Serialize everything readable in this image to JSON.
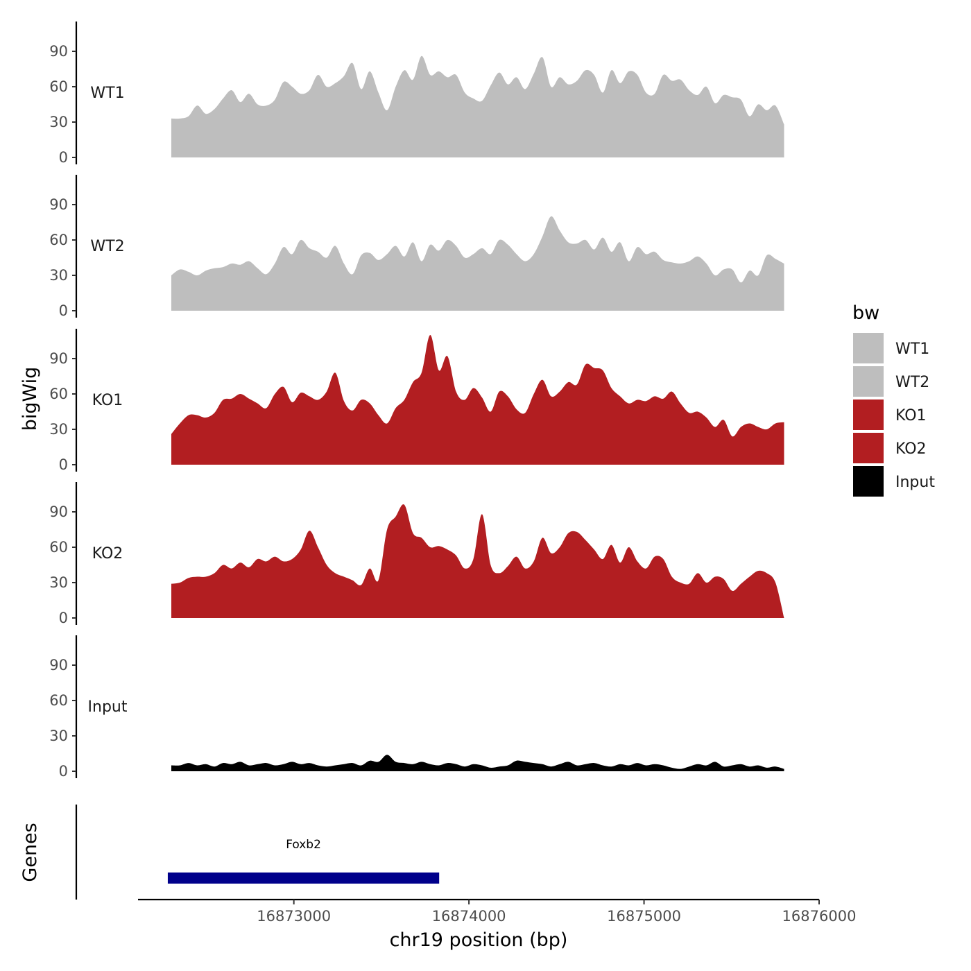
{
  "chart_data": {
    "type": "area",
    "ylabel": "bigWig",
    "xlabel": "chr19 position (bp)",
    "genes_label": "Genes",
    "x_range": [
      16872300,
      16875800
    ],
    "xlim": [
      16872110,
      16876000
    ],
    "x_ticks": [
      16873000,
      16874000,
      16875000,
      16876000
    ],
    "x_tick_labels": [
      "16873000",
      "16874000",
      "16875000",
      "16876000"
    ],
    "ylim": [
      0,
      115
    ],
    "y_ticks": [
      0,
      30,
      60,
      90
    ],
    "y_tick_labels": [
      "0",
      "30",
      "60",
      "90"
    ],
    "legend": {
      "title": "bw",
      "position": "right",
      "entries": [
        {
          "label": "WT1",
          "color": "#bebebe"
        },
        {
          "label": "WT2",
          "color": "#bebebe"
        },
        {
          "label": "KO1",
          "color": "#b21e21"
        },
        {
          "label": "KO2",
          "color": "#b21e21"
        },
        {
          "label": "Input",
          "color": "#000000"
        }
      ]
    },
    "tracks": [
      {
        "name": "WT1",
        "color": "#bebebe",
        "values": [
          33,
          33,
          35,
          44,
          37,
          41,
          50,
          57,
          47,
          54,
          45,
          44,
          49,
          64,
          60,
          54,
          57,
          70,
          60,
          63,
          69,
          80,
          58,
          73,
          55,
          40,
          60,
          74,
          66,
          86,
          70,
          73,
          68,
          70,
          55,
          50,
          48,
          61,
          72,
          62,
          68,
          58,
          71,
          85,
          60,
          68,
          62,
          65,
          74,
          70,
          55,
          74,
          63,
          73,
          70,
          55,
          54,
          70,
          65,
          66,
          57,
          53,
          60,
          46,
          53,
          51,
          49,
          35,
          45,
          40,
          44,
          28
        ]
      },
      {
        "name": "WT2",
        "color": "#bebebe",
        "values": [
          30,
          35,
          33,
          30,
          34,
          36,
          37,
          40,
          39,
          42,
          36,
          31,
          40,
          54,
          48,
          60,
          53,
          50,
          45,
          55,
          40,
          31,
          47,
          49,
          43,
          48,
          55,
          46,
          58,
          42,
          56,
          51,
          60,
          55,
          45,
          48,
          53,
          48,
          60,
          56,
          48,
          42,
          48,
          63,
          80,
          68,
          58,
          57,
          60,
          52,
          62,
          50,
          58,
          42,
          54,
          48,
          50,
          43,
          41,
          40,
          42,
          46,
          40,
          30,
          35,
          35,
          24,
          34,
          30,
          47,
          44,
          40
        ]
      },
      {
        "name": "KO1",
        "color": "#b21e21",
        "values": [
          26,
          35,
          42,
          42,
          40,
          44,
          55,
          56,
          60,
          56,
          52,
          48,
          60,
          66,
          53,
          61,
          58,
          55,
          62,
          78,
          54,
          46,
          55,
          52,
          42,
          35,
          48,
          55,
          70,
          78,
          110,
          80,
          92,
          62,
          55,
          65,
          57,
          45,
          62,
          58,
          47,
          44,
          60,
          72,
          58,
          62,
          70,
          68,
          85,
          82,
          80,
          65,
          58,
          52,
          55,
          54,
          58,
          56,
          62,
          52,
          44,
          45,
          40,
          32,
          38,
          24,
          32,
          35,
          32,
          30,
          35,
          36
        ]
      },
      {
        "name": "KO2",
        "color": "#b21e21",
        "values": [
          29,
          30,
          34,
          35,
          35,
          38,
          45,
          42,
          47,
          43,
          50,
          48,
          52,
          48,
          50,
          58,
          74,
          60,
          45,
          38,
          35,
          32,
          28,
          42,
          32,
          75,
          86,
          96,
          72,
          68,
          60,
          61,
          58,
          53,
          42,
          50,
          88,
          45,
          38,
          44,
          52,
          42,
          48,
          68,
          55,
          60,
          72,
          73,
          66,
          58,
          50,
          62,
          47,
          60,
          48,
          42,
          52,
          50,
          35,
          30,
          29,
          38,
          30,
          35,
          33,
          23,
          29,
          35,
          40,
          38,
          30,
          0
        ]
      },
      {
        "name": "Input",
        "color": "#000000",
        "values": [
          5,
          5,
          7,
          5,
          6,
          4,
          7,
          6,
          8,
          5,
          6,
          7,
          5,
          6,
          8,
          6,
          7,
          5,
          4,
          5,
          6,
          7,
          5,
          9,
          8,
          14,
          8,
          7,
          6,
          8,
          6,
          5,
          7,
          6,
          4,
          6,
          5,
          3,
          4,
          5,
          9,
          8,
          7,
          6,
          4,
          6,
          8,
          5,
          6,
          7,
          5,
          4,
          6,
          5,
          7,
          5,
          6,
          5,
          3,
          2,
          4,
          6,
          5,
          8,
          4,
          5,
          6,
          4,
          5,
          3,
          4,
          2
        ]
      }
    ],
    "genes": [
      {
        "name": "Foxb2",
        "start": 16872280,
        "end": 16873830,
        "color": "#00008b"
      }
    ]
  }
}
